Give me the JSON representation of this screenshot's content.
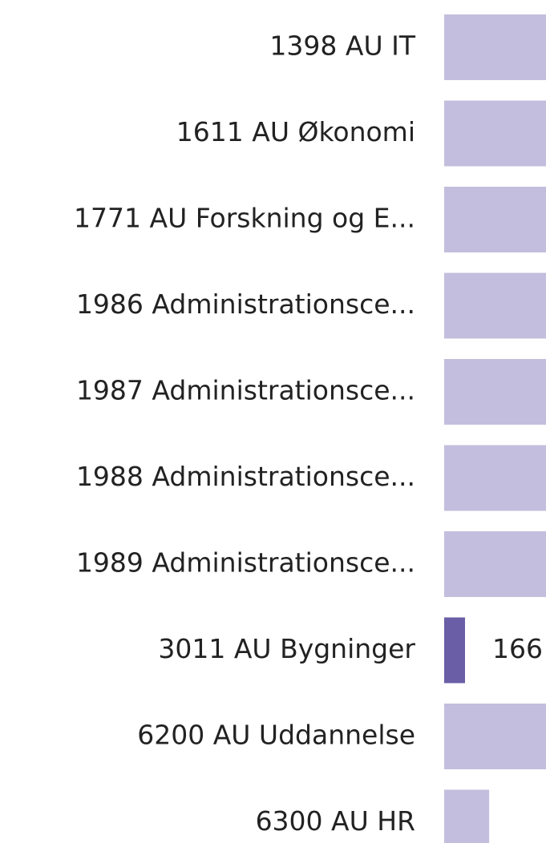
{
  "chart_data": {
    "type": "hbar",
    "categories": [
      "1398 AU IT",
      "1611 AU Økonomi",
      "1771 AU Forskning og E...",
      "1986 Administrationsce...",
      "1987 Administrationsce...",
      "1988 Administrationsce...",
      "1989 Administrationsce...",
      "3011 AU Bygninger",
      "6200 AU Uddannelse",
      "6300 AU HR"
    ],
    "values": [
      1000,
      1000,
      1000,
      1000,
      1000,
      1000,
      1000,
      166,
      1000,
      358
    ],
    "color": "#c3bedd",
    "selected_index": 7,
    "selected_color": "#6a5ea6"
  }
}
